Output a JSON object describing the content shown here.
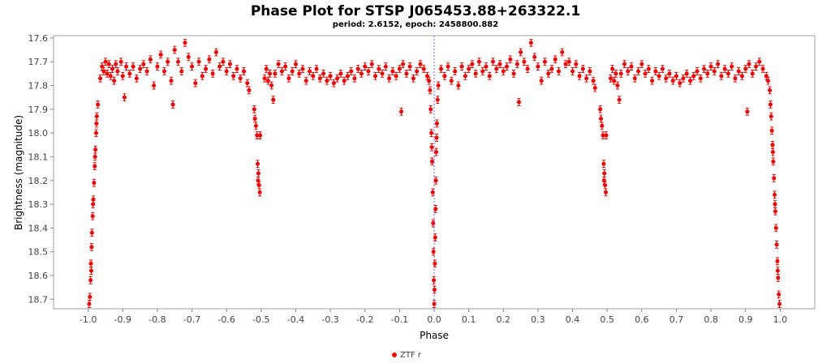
{
  "chart_data": {
    "type": "scatter",
    "title": "Phase Plot for STSP J065453.88+263322.1",
    "subtitle": "period: 2.6152, epoch: 2458800.882",
    "xlabel": "Phase",
    "ylabel": "Brightness (magnitude)",
    "xlim": [
      -1.1,
      1.1
    ],
    "ylim": [
      18.74,
      17.59
    ],
    "y_inverted": true,
    "x_ticks": [
      -1.0,
      -0.9,
      -0.8,
      -0.7,
      -0.6,
      -0.5,
      -0.4,
      -0.3,
      -0.2,
      -0.1,
      0.0,
      0.1,
      0.2,
      0.3,
      0.4,
      0.5,
      0.6,
      0.7,
      0.8,
      0.9,
      1.0
    ],
    "x_tick_labels": [
      "-1.0",
      "-0.9",
      "-0.8",
      "-0.7",
      "-0.6",
      "-0.5",
      "-0.4",
      "-0.3",
      "-0.2",
      "-0.1",
      "0.0",
      "0.1",
      "0.2",
      "0.3",
      "0.4",
      "0.5",
      "0.6",
      "0.7",
      "0.8",
      "0.9",
      "1.0"
    ],
    "y_ticks": [
      17.6,
      17.7,
      17.8,
      17.9,
      18.0,
      18.1,
      18.2,
      18.3,
      18.4,
      18.5,
      18.6,
      18.7
    ],
    "y_tick_labels": [
      "17.6",
      "17.7",
      "17.8",
      "17.9",
      "18.0",
      "18.1",
      "18.2",
      "18.3",
      "18.4",
      "18.5",
      "18.6",
      "18.7"
    ],
    "vertical_marker_x": 0.0,
    "grid": false,
    "legend_position": "bottom-center",
    "series": [
      {
        "name": "ZTF r",
        "color": "#ff0000",
        "error_bar": 0.015,
        "points": [
          [
            -0.995,
            18.69
          ],
          [
            -0.993,
            18.62
          ],
          [
            -0.992,
            18.55
          ],
          [
            -0.99,
            18.48
          ],
          [
            -0.989,
            18.42
          ],
          [
            -0.987,
            18.35
          ],
          [
            -0.985,
            18.28
          ],
          [
            -0.983,
            18.21
          ],
          [
            -0.981,
            18.14
          ],
          [
            -0.979,
            18.07
          ],
          [
            -0.977,
            18.0
          ],
          [
            -0.975,
            17.93
          ],
          [
            -0.972,
            17.88
          ],
          [
            -0.997,
            18.72
          ],
          [
            -0.991,
            18.58
          ],
          [
            -0.986,
            18.3
          ],
          [
            -0.98,
            18.1
          ],
          [
            -0.976,
            17.96
          ],
          [
            -0.965,
            17.77
          ],
          [
            -0.96,
            17.72
          ],
          [
            -0.955,
            17.74
          ],
          [
            -0.95,
            17.7
          ],
          [
            -0.945,
            17.75
          ],
          [
            -0.94,
            17.71
          ],
          [
            -0.935,
            17.76
          ],
          [
            -0.93,
            17.73
          ],
          [
            -0.925,
            17.78
          ],
          [
            -0.92,
            17.71
          ],
          [
            -0.915,
            17.74
          ],
          [
            -0.905,
            17.7
          ],
          [
            -0.9,
            17.76
          ],
          [
            -0.895,
            17.85
          ],
          [
            -0.89,
            17.72
          ],
          [
            -0.88,
            17.75
          ],
          [
            -0.87,
            17.72
          ],
          [
            -0.86,
            17.77
          ],
          [
            -0.85,
            17.73
          ],
          [
            -0.84,
            17.71
          ],
          [
            -0.83,
            17.74
          ],
          [
            -0.82,
            17.69
          ],
          [
            -0.81,
            17.8
          ],
          [
            -0.8,
            17.72
          ],
          [
            -0.79,
            17.67
          ],
          [
            -0.78,
            17.74
          ],
          [
            -0.77,
            17.7
          ],
          [
            -0.76,
            17.78
          ],
          [
            -0.755,
            17.88
          ],
          [
            -0.75,
            17.65
          ],
          [
            -0.74,
            17.7
          ],
          [
            -0.73,
            17.74
          ],
          [
            -0.72,
            17.62
          ],
          [
            -0.71,
            17.68
          ],
          [
            -0.7,
            17.72
          ],
          [
            -0.69,
            17.79
          ],
          [
            -0.68,
            17.7
          ],
          [
            -0.67,
            17.76
          ],
          [
            -0.66,
            17.73
          ],
          [
            -0.65,
            17.69
          ],
          [
            -0.64,
            17.75
          ],
          [
            -0.63,
            17.66
          ],
          [
            -0.62,
            17.72
          ],
          [
            -0.61,
            17.7
          ],
          [
            -0.6,
            17.74
          ],
          [
            -0.59,
            17.71
          ],
          [
            -0.58,
            17.76
          ],
          [
            -0.57,
            17.73
          ],
          [
            -0.56,
            17.77
          ],
          [
            -0.55,
            17.74
          ],
          [
            -0.54,
            17.79
          ],
          [
            -0.535,
            17.82
          ],
          [
            -0.52,
            17.9
          ],
          [
            -0.518,
            17.94
          ],
          [
            -0.515,
            17.97
          ],
          [
            -0.512,
            18.01
          ],
          [
            -0.503,
            18.01
          ],
          [
            -0.51,
            18.13
          ],
          [
            -0.508,
            18.17
          ],
          [
            -0.506,
            18.22
          ],
          [
            -0.504,
            18.25
          ],
          [
            -0.509,
            18.2
          ],
          [
            -0.49,
            17.77
          ],
          [
            -0.485,
            17.73
          ],
          [
            -0.48,
            17.78
          ],
          [
            -0.475,
            17.75
          ],
          [
            -0.47,
            17.8
          ],
          [
            -0.465,
            17.86
          ],
          [
            -0.46,
            17.75
          ],
          [
            -0.45,
            17.71
          ],
          [
            -0.44,
            17.74
          ],
          [
            -0.43,
            17.72
          ],
          [
            -0.42,
            17.77
          ],
          [
            -0.41,
            17.74
          ],
          [
            -0.4,
            17.71
          ],
          [
            -0.39,
            17.75
          ],
          [
            -0.38,
            17.73
          ],
          [
            -0.37,
            17.78
          ],
          [
            -0.36,
            17.74
          ],
          [
            -0.35,
            17.76
          ],
          [
            -0.34,
            17.73
          ],
          [
            -0.33,
            17.77
          ],
          [
            -0.32,
            17.75
          ],
          [
            -0.31,
            17.78
          ],
          [
            -0.3,
            17.76
          ],
          [
            -0.29,
            17.79
          ],
          [
            -0.28,
            17.77
          ],
          [
            -0.27,
            17.75
          ],
          [
            -0.26,
            17.78
          ],
          [
            -0.25,
            17.76
          ],
          [
            -0.24,
            17.74
          ],
          [
            -0.23,
            17.77
          ],
          [
            -0.22,
            17.73
          ],
          [
            -0.21,
            17.75
          ],
          [
            -0.2,
            17.72
          ],
          [
            -0.19,
            17.74
          ],
          [
            -0.18,
            17.71
          ],
          [
            -0.17,
            17.76
          ],
          [
            -0.16,
            17.73
          ],
          [
            -0.15,
            17.75
          ],
          [
            -0.14,
            17.72
          ],
          [
            -0.13,
            17.77
          ],
          [
            -0.12,
            17.74
          ],
          [
            -0.11,
            17.76
          ],
          [
            -0.1,
            17.73
          ],
          [
            -0.095,
            17.91
          ],
          [
            -0.09,
            17.71
          ],
          [
            -0.08,
            17.75
          ],
          [
            -0.07,
            17.72
          ],
          [
            -0.06,
            17.77
          ],
          [
            -0.05,
            17.74
          ],
          [
            -0.04,
            17.71
          ],
          [
            -0.03,
            17.73
          ],
          [
            -0.02,
            17.76
          ],
          [
            -0.015,
            17.78
          ],
          [
            -0.012,
            17.82
          ],
          [
            -0.01,
            17.9
          ],
          [
            -0.008,
            18.0
          ],
          [
            -0.006,
            18.12
          ],
          [
            -0.004,
            18.25
          ],
          [
            -0.003,
            18.38
          ],
          [
            -0.002,
            18.5
          ],
          [
            -0.001,
            18.62
          ],
          [
            0.0,
            18.72
          ],
          [
            0.001,
            18.66
          ],
          [
            0.002,
            18.55
          ],
          [
            0.003,
            18.44
          ],
          [
            0.004,
            18.32
          ],
          [
            0.005,
            18.2
          ],
          [
            0.006,
            18.08
          ],
          [
            0.008,
            17.96
          ],
          [
            0.01,
            17.86
          ],
          [
            0.012,
            17.8
          ],
          [
            -0.007,
            18.06
          ],
          [
            0.007,
            18.02
          ],
          [
            0.02,
            17.73
          ],
          [
            0.03,
            17.76
          ],
          [
            0.04,
            17.72
          ],
          [
            0.05,
            17.78
          ],
          [
            0.06,
            17.74
          ],
          [
            0.07,
            17.8
          ],
          [
            0.08,
            17.72
          ],
          [
            0.09,
            17.76
          ],
          [
            0.1,
            17.73
          ],
          [
            0.11,
            17.71
          ],
          [
            0.12,
            17.75
          ],
          [
            0.13,
            17.7
          ],
          [
            0.14,
            17.74
          ],
          [
            0.15,
            17.72
          ],
          [
            0.16,
            17.76
          ],
          [
            0.17,
            17.7
          ],
          [
            0.18,
            17.73
          ],
          [
            0.19,
            17.71
          ],
          [
            0.2,
            17.74
          ],
          [
            0.21,
            17.72
          ],
          [
            0.22,
            17.69
          ],
          [
            0.23,
            17.75
          ],
          [
            0.24,
            17.71
          ],
          [
            0.245,
            17.87
          ],
          [
            0.25,
            17.66
          ],
          [
            0.26,
            17.7
          ],
          [
            0.27,
            17.73
          ],
          [
            0.28,
            17.62
          ],
          [
            0.29,
            17.68
          ],
          [
            0.3,
            17.72
          ],
          [
            0.31,
            17.78
          ],
          [
            0.32,
            17.7
          ],
          [
            0.33,
            17.75
          ],
          [
            0.34,
            17.73
          ],
          [
            0.35,
            17.69
          ],
          [
            0.36,
            17.74
          ],
          [
            0.37,
            17.66
          ],
          [
            0.38,
            17.71
          ],
          [
            0.39,
            17.7
          ],
          [
            0.4,
            17.74
          ],
          [
            0.41,
            17.71
          ],
          [
            0.42,
            17.76
          ],
          [
            0.43,
            17.73
          ],
          [
            0.44,
            17.77
          ],
          [
            0.45,
            17.74
          ],
          [
            0.46,
            17.78
          ],
          [
            0.465,
            17.81
          ],
          [
            0.48,
            17.9
          ],
          [
            0.482,
            17.94
          ],
          [
            0.485,
            17.97
          ],
          [
            0.488,
            18.01
          ],
          [
            0.497,
            18.01
          ],
          [
            0.49,
            18.13
          ],
          [
            0.492,
            18.17
          ],
          [
            0.494,
            18.22
          ],
          [
            0.496,
            18.25
          ],
          [
            0.491,
            18.2
          ],
          [
            0.51,
            17.77
          ],
          [
            0.515,
            17.73
          ],
          [
            0.52,
            17.78
          ],
          [
            0.525,
            17.75
          ],
          [
            0.53,
            17.8
          ],
          [
            0.535,
            17.86
          ],
          [
            0.54,
            17.75
          ],
          [
            0.55,
            17.71
          ],
          [
            0.56,
            17.74
          ],
          [
            0.57,
            17.72
          ],
          [
            0.58,
            17.77
          ],
          [
            0.59,
            17.74
          ],
          [
            0.6,
            17.71
          ],
          [
            0.61,
            17.75
          ],
          [
            0.62,
            17.73
          ],
          [
            0.63,
            17.78
          ],
          [
            0.64,
            17.74
          ],
          [
            0.65,
            17.76
          ],
          [
            0.66,
            17.73
          ],
          [
            0.67,
            17.77
          ],
          [
            0.68,
            17.75
          ],
          [
            0.69,
            17.78
          ],
          [
            0.7,
            17.76
          ],
          [
            0.71,
            17.79
          ],
          [
            0.72,
            17.77
          ],
          [
            0.73,
            17.75
          ],
          [
            0.74,
            17.78
          ],
          [
            0.75,
            17.76
          ],
          [
            0.76,
            17.74
          ],
          [
            0.77,
            17.77
          ],
          [
            0.78,
            17.73
          ],
          [
            0.79,
            17.75
          ],
          [
            0.8,
            17.72
          ],
          [
            0.81,
            17.74
          ],
          [
            0.82,
            17.71
          ],
          [
            0.83,
            17.76
          ],
          [
            0.84,
            17.73
          ],
          [
            0.85,
            17.75
          ],
          [
            0.86,
            17.72
          ],
          [
            0.87,
            17.77
          ],
          [
            0.88,
            17.74
          ],
          [
            0.89,
            17.76
          ],
          [
            0.9,
            17.73
          ],
          [
            0.905,
            17.91
          ],
          [
            0.91,
            17.71
          ],
          [
            0.92,
            17.75
          ],
          [
            0.93,
            17.72
          ],
          [
            0.94,
            17.7
          ],
          [
            0.95,
            17.73
          ],
          [
            0.96,
            17.76
          ],
          [
            0.965,
            17.78
          ],
          [
            0.97,
            17.82
          ],
          [
            0.972,
            17.88
          ],
          [
            0.974,
            17.93
          ],
          [
            0.976,
            17.99
          ],
          [
            0.978,
            18.05
          ],
          [
            0.98,
            18.12
          ],
          [
            0.982,
            18.19
          ],
          [
            0.984,
            18.26
          ],
          [
            0.986,
            18.33
          ],
          [
            0.988,
            18.4
          ],
          [
            0.99,
            18.47
          ],
          [
            0.992,
            18.54
          ],
          [
            0.994,
            18.61
          ],
          [
            0.996,
            18.68
          ],
          [
            0.998,
            18.72
          ],
          [
            0.985,
            18.3
          ],
          [
            0.979,
            18.08
          ],
          [
            0.993,
            18.58
          ]
        ]
      }
    ]
  }
}
